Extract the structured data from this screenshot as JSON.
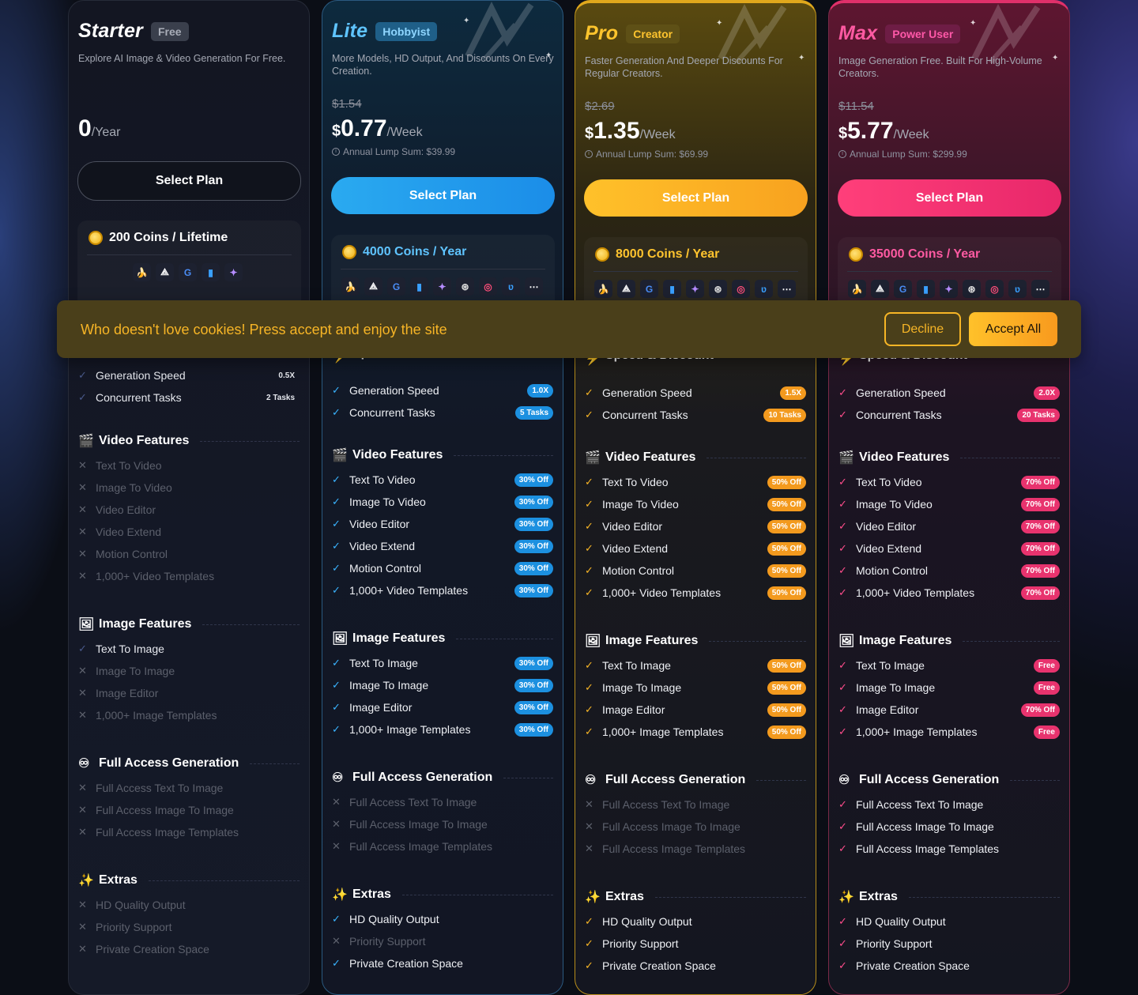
{
  "plans": [
    {
      "name": "Starter",
      "badge": "Free",
      "desc": "Explore AI Image & Video Generation For Free.",
      "price_amount": "0",
      "price_period": "/Year",
      "button": "Select Plan",
      "coins": "200 Coins / Lifetime",
      "stats": [
        {
          "label": "Generation Speed",
          "value": "0.5X"
        },
        {
          "label": "Concurrent Tasks",
          "value": "2 Tasks"
        }
      ],
      "video_title": "Video Features",
      "video": [
        {
          "label": "Text To Video",
          "on": false
        },
        {
          "label": "Image To Video",
          "on": false
        },
        {
          "label": "Video Editor",
          "on": false
        },
        {
          "label": "Video Extend",
          "on": false
        },
        {
          "label": "Motion Control",
          "on": false
        },
        {
          "label": "1,000+ Video Templates",
          "on": false
        }
      ],
      "image_title": "Image Features",
      "image": [
        {
          "label": "Text To Image",
          "on": true
        },
        {
          "label": "Image To Image",
          "on": false
        },
        {
          "label": "Image Editor",
          "on": false
        },
        {
          "label": "1,000+ Image Templates",
          "on": false
        }
      ],
      "full_title": "Full Access Generation",
      "full": [
        {
          "label": "Full Access Text To Image",
          "on": false
        },
        {
          "label": "Full Access Image To Image",
          "on": false
        },
        {
          "label": "Full Access Image Templates",
          "on": false
        }
      ],
      "extras_title": "Extras",
      "extras": [
        {
          "label": "HD Quality Output",
          "on": false
        },
        {
          "label": "Priority Support",
          "on": false
        },
        {
          "label": "Private Creation Space",
          "on": false
        }
      ]
    },
    {
      "name": "Lite",
      "badge": "Hobbyist",
      "desc": "More Models, HD Output, And Discounts On Every Creation.",
      "old_price": "$1.54",
      "price_currency": "$",
      "price_amount": "0.77",
      "price_period": "/Week",
      "lump": "Annual Lump Sum: $39.99",
      "button": "Select Plan",
      "coins": "4000 Coins / Year",
      "speed_title": "Speed & Discount",
      "stats": [
        {
          "label": "Generation Speed",
          "value": "1.0X"
        },
        {
          "label": "Concurrent Tasks",
          "value": "5 Tasks"
        }
      ],
      "video_title": "Video Features",
      "video": [
        {
          "label": "Text To Video",
          "on": true,
          "tag": "30% Off"
        },
        {
          "label": "Image To Video",
          "on": true,
          "tag": "30% Off"
        },
        {
          "label": "Video Editor",
          "on": true,
          "tag": "30% Off"
        },
        {
          "label": "Video Extend",
          "on": true,
          "tag": "30% Off"
        },
        {
          "label": "Motion Control",
          "on": true,
          "tag": "30% Off"
        },
        {
          "label": "1,000+ Video Templates",
          "on": true,
          "tag": "30% Off"
        }
      ],
      "image_title": "Image Features",
      "image": [
        {
          "label": "Text To Image",
          "on": true,
          "tag": "30% Off"
        },
        {
          "label": "Image To Image",
          "on": true,
          "tag": "30% Off"
        },
        {
          "label": "Image Editor",
          "on": true,
          "tag": "30% Off"
        },
        {
          "label": "1,000+ Image Templates",
          "on": true,
          "tag": "30% Off"
        }
      ],
      "full_title": "Full Access Generation",
      "full": [
        {
          "label": "Full Access Text To Image",
          "on": false
        },
        {
          "label": "Full Access Image To Image",
          "on": false
        },
        {
          "label": "Full Access Image Templates",
          "on": false
        }
      ],
      "extras_title": "Extras",
      "extras": [
        {
          "label": "HD Quality Output",
          "on": true
        },
        {
          "label": "Priority Support",
          "on": false
        },
        {
          "label": "Private Creation Space",
          "on": true
        }
      ]
    },
    {
      "name": "Pro",
      "badge": "Creator",
      "desc": "Faster Generation And Deeper Discounts For Regular Creators.",
      "old_price": "$2.69",
      "price_currency": "$",
      "price_amount": "1.35",
      "price_period": "/Week",
      "lump": "Annual Lump Sum: $69.99",
      "button": "Select Plan",
      "coins": "8000 Coins / Year",
      "speed_title": "Speed & Discount",
      "stats": [
        {
          "label": "Generation Speed",
          "value": "1.5X"
        },
        {
          "label": "Concurrent Tasks",
          "value": "10 Tasks"
        }
      ],
      "video_title": "Video Features",
      "video": [
        {
          "label": "Text To Video",
          "on": true,
          "tag": "50% Off"
        },
        {
          "label": "Image To Video",
          "on": true,
          "tag": "50% Off"
        },
        {
          "label": "Video Editor",
          "on": true,
          "tag": "50% Off"
        },
        {
          "label": "Video Extend",
          "on": true,
          "tag": "50% Off"
        },
        {
          "label": "Motion Control",
          "on": true,
          "tag": "50% Off"
        },
        {
          "label": "1,000+ Video Templates",
          "on": true,
          "tag": "50% Off"
        }
      ],
      "image_title": "Image Features",
      "image": [
        {
          "label": "Text To Image",
          "on": true,
          "tag": "50% Off"
        },
        {
          "label": "Image To Image",
          "on": true,
          "tag": "50% Off"
        },
        {
          "label": "Image Editor",
          "on": true,
          "tag": "50% Off"
        },
        {
          "label": "1,000+ Image Templates",
          "on": true,
          "tag": "50% Off"
        }
      ],
      "full_title": "Full Access Generation",
      "full": [
        {
          "label": "Full Access Text To Image",
          "on": false
        },
        {
          "label": "Full Access Image To Image",
          "on": false
        },
        {
          "label": "Full Access Image Templates",
          "on": false
        }
      ],
      "extras_title": "Extras",
      "extras": [
        {
          "label": "HD Quality Output",
          "on": true
        },
        {
          "label": "Priority Support",
          "on": true
        },
        {
          "label": "Private Creation Space",
          "on": true
        }
      ]
    },
    {
      "name": "Max",
      "badge": "Power User",
      "desc": "Image Generation Free. Built For High-Volume Creators.",
      "old_price": "$11.54",
      "price_currency": "$",
      "price_amount": "5.77",
      "price_period": "/Week",
      "lump": "Annual Lump Sum: $299.99",
      "button": "Select Plan",
      "coins": "35000 Coins / Year",
      "speed_title": "Speed & Discount",
      "stats": [
        {
          "label": "Generation Speed",
          "value": "2.0X"
        },
        {
          "label": "Concurrent Tasks",
          "value": "20 Tasks"
        }
      ],
      "video_title": "Video Features",
      "video": [
        {
          "label": "Text To Video",
          "on": true,
          "tag": "70% Off"
        },
        {
          "label": "Image To Video",
          "on": true,
          "tag": "70% Off"
        },
        {
          "label": "Video Editor",
          "on": true,
          "tag": "70% Off"
        },
        {
          "label": "Video Extend",
          "on": true,
          "tag": "70% Off"
        },
        {
          "label": "Motion Control",
          "on": true,
          "tag": "70% Off"
        },
        {
          "label": "1,000+ Video Templates",
          "on": true,
          "tag": "70% Off"
        }
      ],
      "image_title": "Image Features",
      "image": [
        {
          "label": "Text To Image",
          "on": true,
          "tag": "Free"
        },
        {
          "label": "Image To Image",
          "on": true,
          "tag": "Free"
        },
        {
          "label": "Image Editor",
          "on": true,
          "tag": "70% Off"
        },
        {
          "label": "1,000+ Image Templates",
          "on": true,
          "tag": "Free"
        }
      ],
      "full_title": "Full Access Generation",
      "full": [
        {
          "label": "Full Access Text To Image",
          "on": true
        },
        {
          "label": "Full Access Image To Image",
          "on": true
        },
        {
          "label": "Full Access Image Templates",
          "on": true
        }
      ],
      "extras_title": "Extras",
      "extras": [
        {
          "label": "HD Quality Output",
          "on": true
        },
        {
          "label": "Priority Support",
          "on": true
        },
        {
          "label": "Private Creation Space",
          "on": true
        }
      ]
    }
  ],
  "model_icons": [
    "banana-icon",
    "triangle-logo-icon",
    "google-icon",
    "bars-logo-icon",
    "star-logo-icon",
    "swirl-logo-icon",
    "spiral-logo-icon",
    "wave-logo-icon",
    "more-icon"
  ],
  "cookie": {
    "text": "Who doesn't love cookies! Press accept and enjoy the site",
    "decline": "Decline",
    "accept": "Accept All"
  }
}
